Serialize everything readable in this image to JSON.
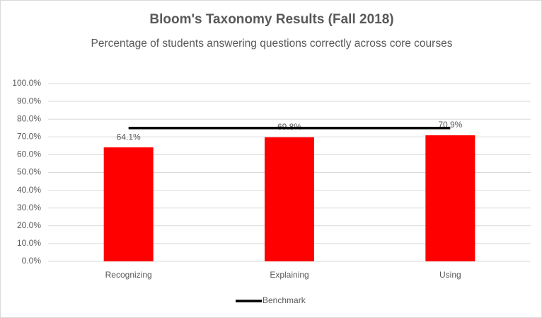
{
  "chart_data": {
    "type": "bar",
    "title": "Bloom's Taxonomy Results (Fall 2018)",
    "subtitle": "Percentage of students answering questions correctly across core courses",
    "categories": [
      "Recognizing",
      "Explaining",
      "Using"
    ],
    "values": [
      64.1,
      69.8,
      70.9
    ],
    "value_labels": [
      "64.1%",
      "69.8%",
      "70.9%"
    ],
    "color": "#ff0000",
    "series": [
      {
        "name": "Benchmark",
        "type": "line",
        "color": "#000000",
        "values": [
          75,
          75,
          75
        ]
      }
    ],
    "ylim": [
      0,
      100
    ],
    "yticks": [
      {
        "value": 0,
        "label": "0.0%"
      },
      {
        "value": 10,
        "label": "10.0%"
      },
      {
        "value": 20,
        "label": "20.0%"
      },
      {
        "value": 30,
        "label": "30.0%"
      },
      {
        "value": 40,
        "label": "40.0%"
      },
      {
        "value": 50,
        "label": "50.0%"
      },
      {
        "value": 60,
        "label": "60.0%"
      },
      {
        "value": 70,
        "label": "70.0%"
      },
      {
        "value": 80,
        "label": "80.0%"
      },
      {
        "value": 90,
        "label": "90.0%"
      },
      {
        "value": 100,
        "label": "100.0%"
      }
    ],
    "grid": true,
    "legend": "bottom"
  }
}
